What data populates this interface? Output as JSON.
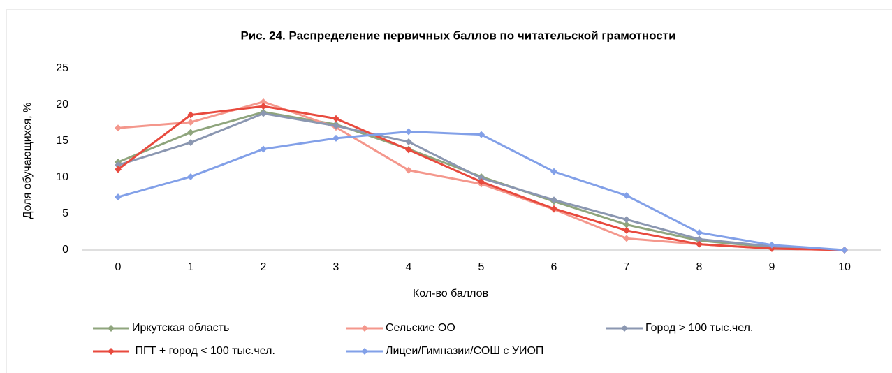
{
  "chart_data": {
    "type": "line",
    "title": "Рис. 24. Распределение первичных баллов по читательской грамотности",
    "x_label": "Кол-во баллов",
    "y_label": "Доля обучающихся, %",
    "x": [
      0,
      1,
      2,
      3,
      4,
      5,
      6,
      7,
      8,
      9,
      10
    ],
    "xlim": [
      -0.5,
      10.5
    ],
    "xticks": [
      0,
      1,
      2,
      3,
      4,
      5,
      6,
      7,
      8,
      9,
      10
    ],
    "ylim": [
      0,
      25
    ],
    "yticks": [
      0,
      5,
      10,
      15,
      20,
      25
    ],
    "series": [
      {
        "name": "Иркутская область",
        "color": "#8fa57d",
        "values": [
          12.1,
          16.2,
          19.0,
          17.3,
          13.9,
          10.1,
          6.7,
          3.5,
          1.3,
          0.4,
          0
        ]
      },
      {
        "name": "Сельские ОО",
        "color": "#f4978c",
        "values": [
          16.8,
          17.6,
          20.4,
          16.9,
          11.0,
          9.1,
          5.6,
          1.6,
          0.8,
          0.2,
          0
        ]
      },
      {
        "name": "Город > 100 тыс.чел.",
        "color": "#8b97b1",
        "values": [
          11.7,
          14.8,
          18.8,
          17.1,
          14.9,
          9.9,
          6.9,
          4.2,
          1.5,
          0.5,
          0
        ]
      },
      {
        "name": " ПГТ + город < 100 тыс.чел.",
        "color": "#e84a3e",
        "values": [
          11.1,
          18.6,
          19.8,
          18.1,
          13.8,
          9.4,
          5.7,
          2.7,
          0.8,
          0.2,
          0
        ]
      },
      {
        "name": "Лицеи/Гимназии/СОШ с УИОП",
        "color": "#82a0e8",
        "values": [
          7.3,
          10.1,
          13.9,
          15.4,
          16.3,
          15.9,
          10.8,
          7.5,
          2.4,
          0.7,
          0
        ]
      }
    ]
  }
}
